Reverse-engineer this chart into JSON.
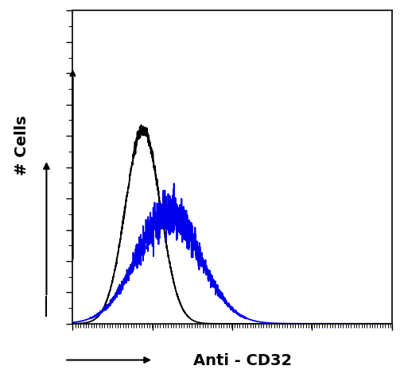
{
  "title": "",
  "xlabel": "Anti - CD32",
  "ylabel": "# Cells",
  "background_color": "#ffffff",
  "plot_bg_color": "#ffffff",
  "black_curve": {
    "color": "#000000",
    "linewidth": 1.3,
    "mu": 0.22,
    "sigma": 0.055,
    "peak": 0.62
  },
  "blue_curve": {
    "color": "#0000ee",
    "linewidth": 1.3,
    "mu": 0.3,
    "sigma": 0.1,
    "peak": 0.35
  },
  "xlim": [
    0,
    1
  ],
  "ylim": [
    0,
    1.0
  ],
  "ylabel_fontsize": 14,
  "xlabel_fontsize": 14,
  "ylabel_fontweight": "bold",
  "xlabel_fontweight": "bold"
}
